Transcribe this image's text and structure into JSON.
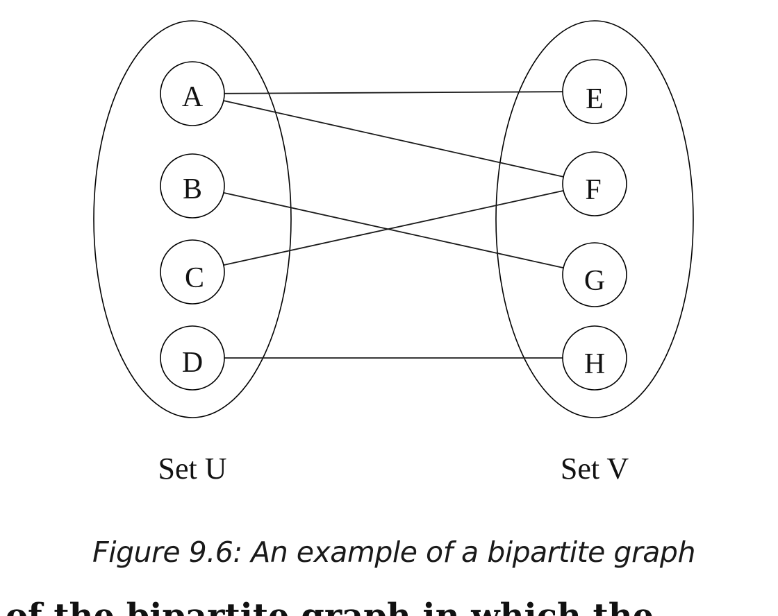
{
  "diagram": {
    "sets": [
      {
        "id": "U",
        "label": "Set U",
        "nodes": [
          "A",
          "B",
          "C",
          "D"
        ]
      },
      {
        "id": "V",
        "label": "Set V",
        "nodes": [
          "E",
          "F",
          "G",
          "H"
        ]
      }
    ],
    "edges": [
      {
        "from": "A",
        "to": "E"
      },
      {
        "from": "A",
        "to": "F"
      },
      {
        "from": "B",
        "to": "G"
      },
      {
        "from": "C",
        "to": "F"
      },
      {
        "from": "D",
        "to": "H"
      }
    ],
    "colors": {
      "stroke": "#000000",
      "text": "#111111",
      "background": "#ffffff"
    }
  },
  "caption": "Figure 9.6: An example of a bipartite graph",
  "cut_off_text": "of the bipartite graph in which the"
}
